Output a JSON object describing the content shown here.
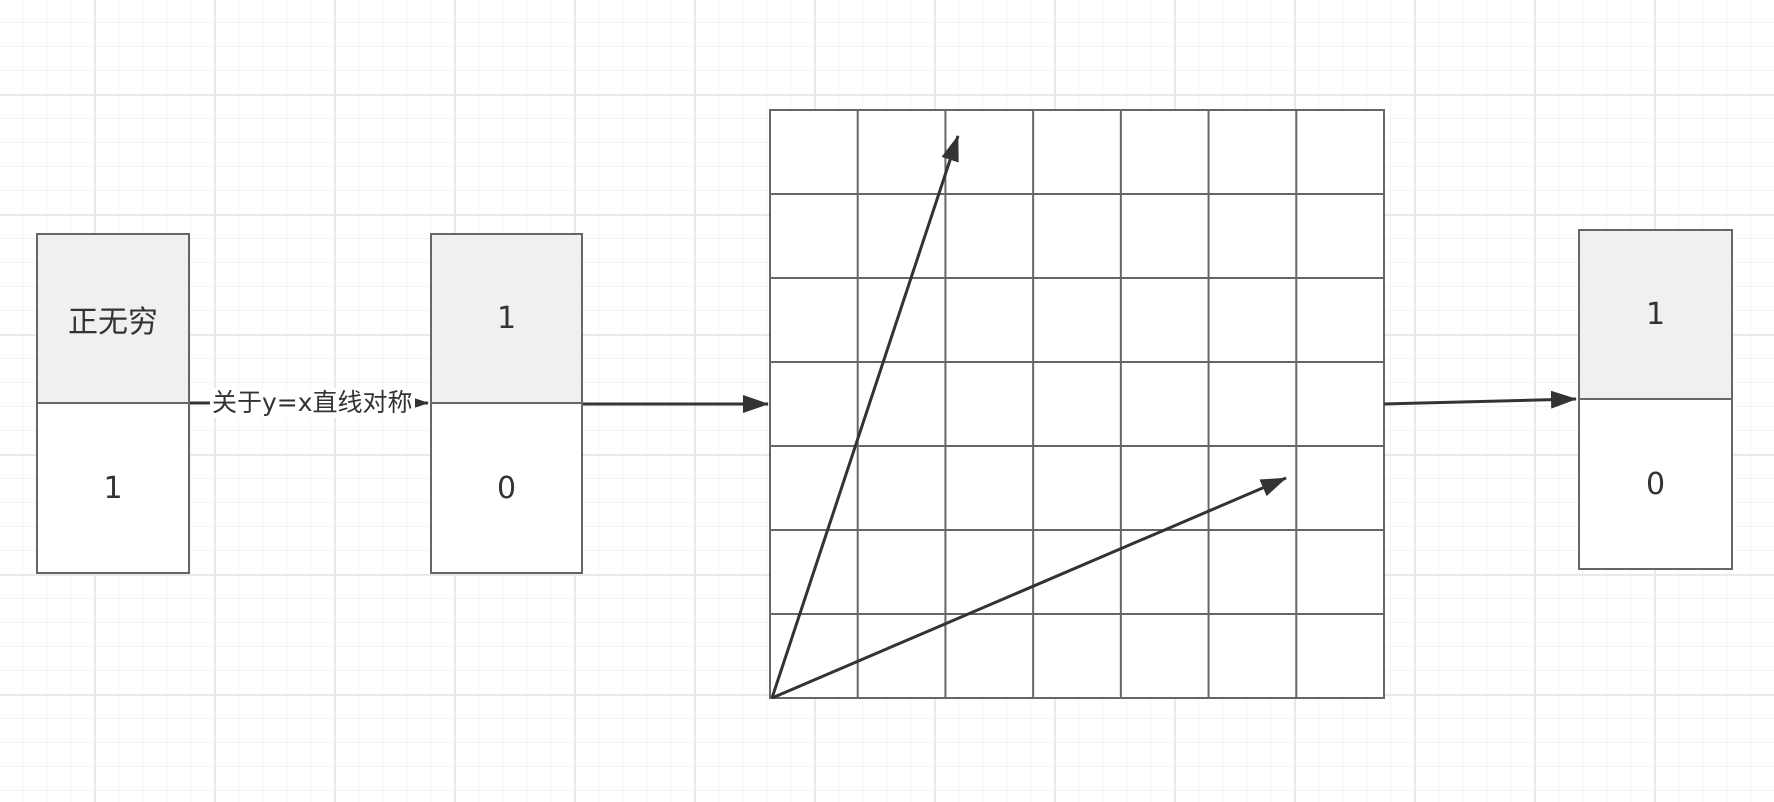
{
  "diagram": {
    "source_stack": {
      "top": "正无穷",
      "bottom": "1"
    },
    "edge_label": "关于y=x直线对称",
    "mid_stack": {
      "top": "1",
      "bottom": "0"
    },
    "grid": {
      "columns": 7,
      "rows": 7
    },
    "result_stack": {
      "top": "1",
      "bottom": "0"
    }
  }
}
